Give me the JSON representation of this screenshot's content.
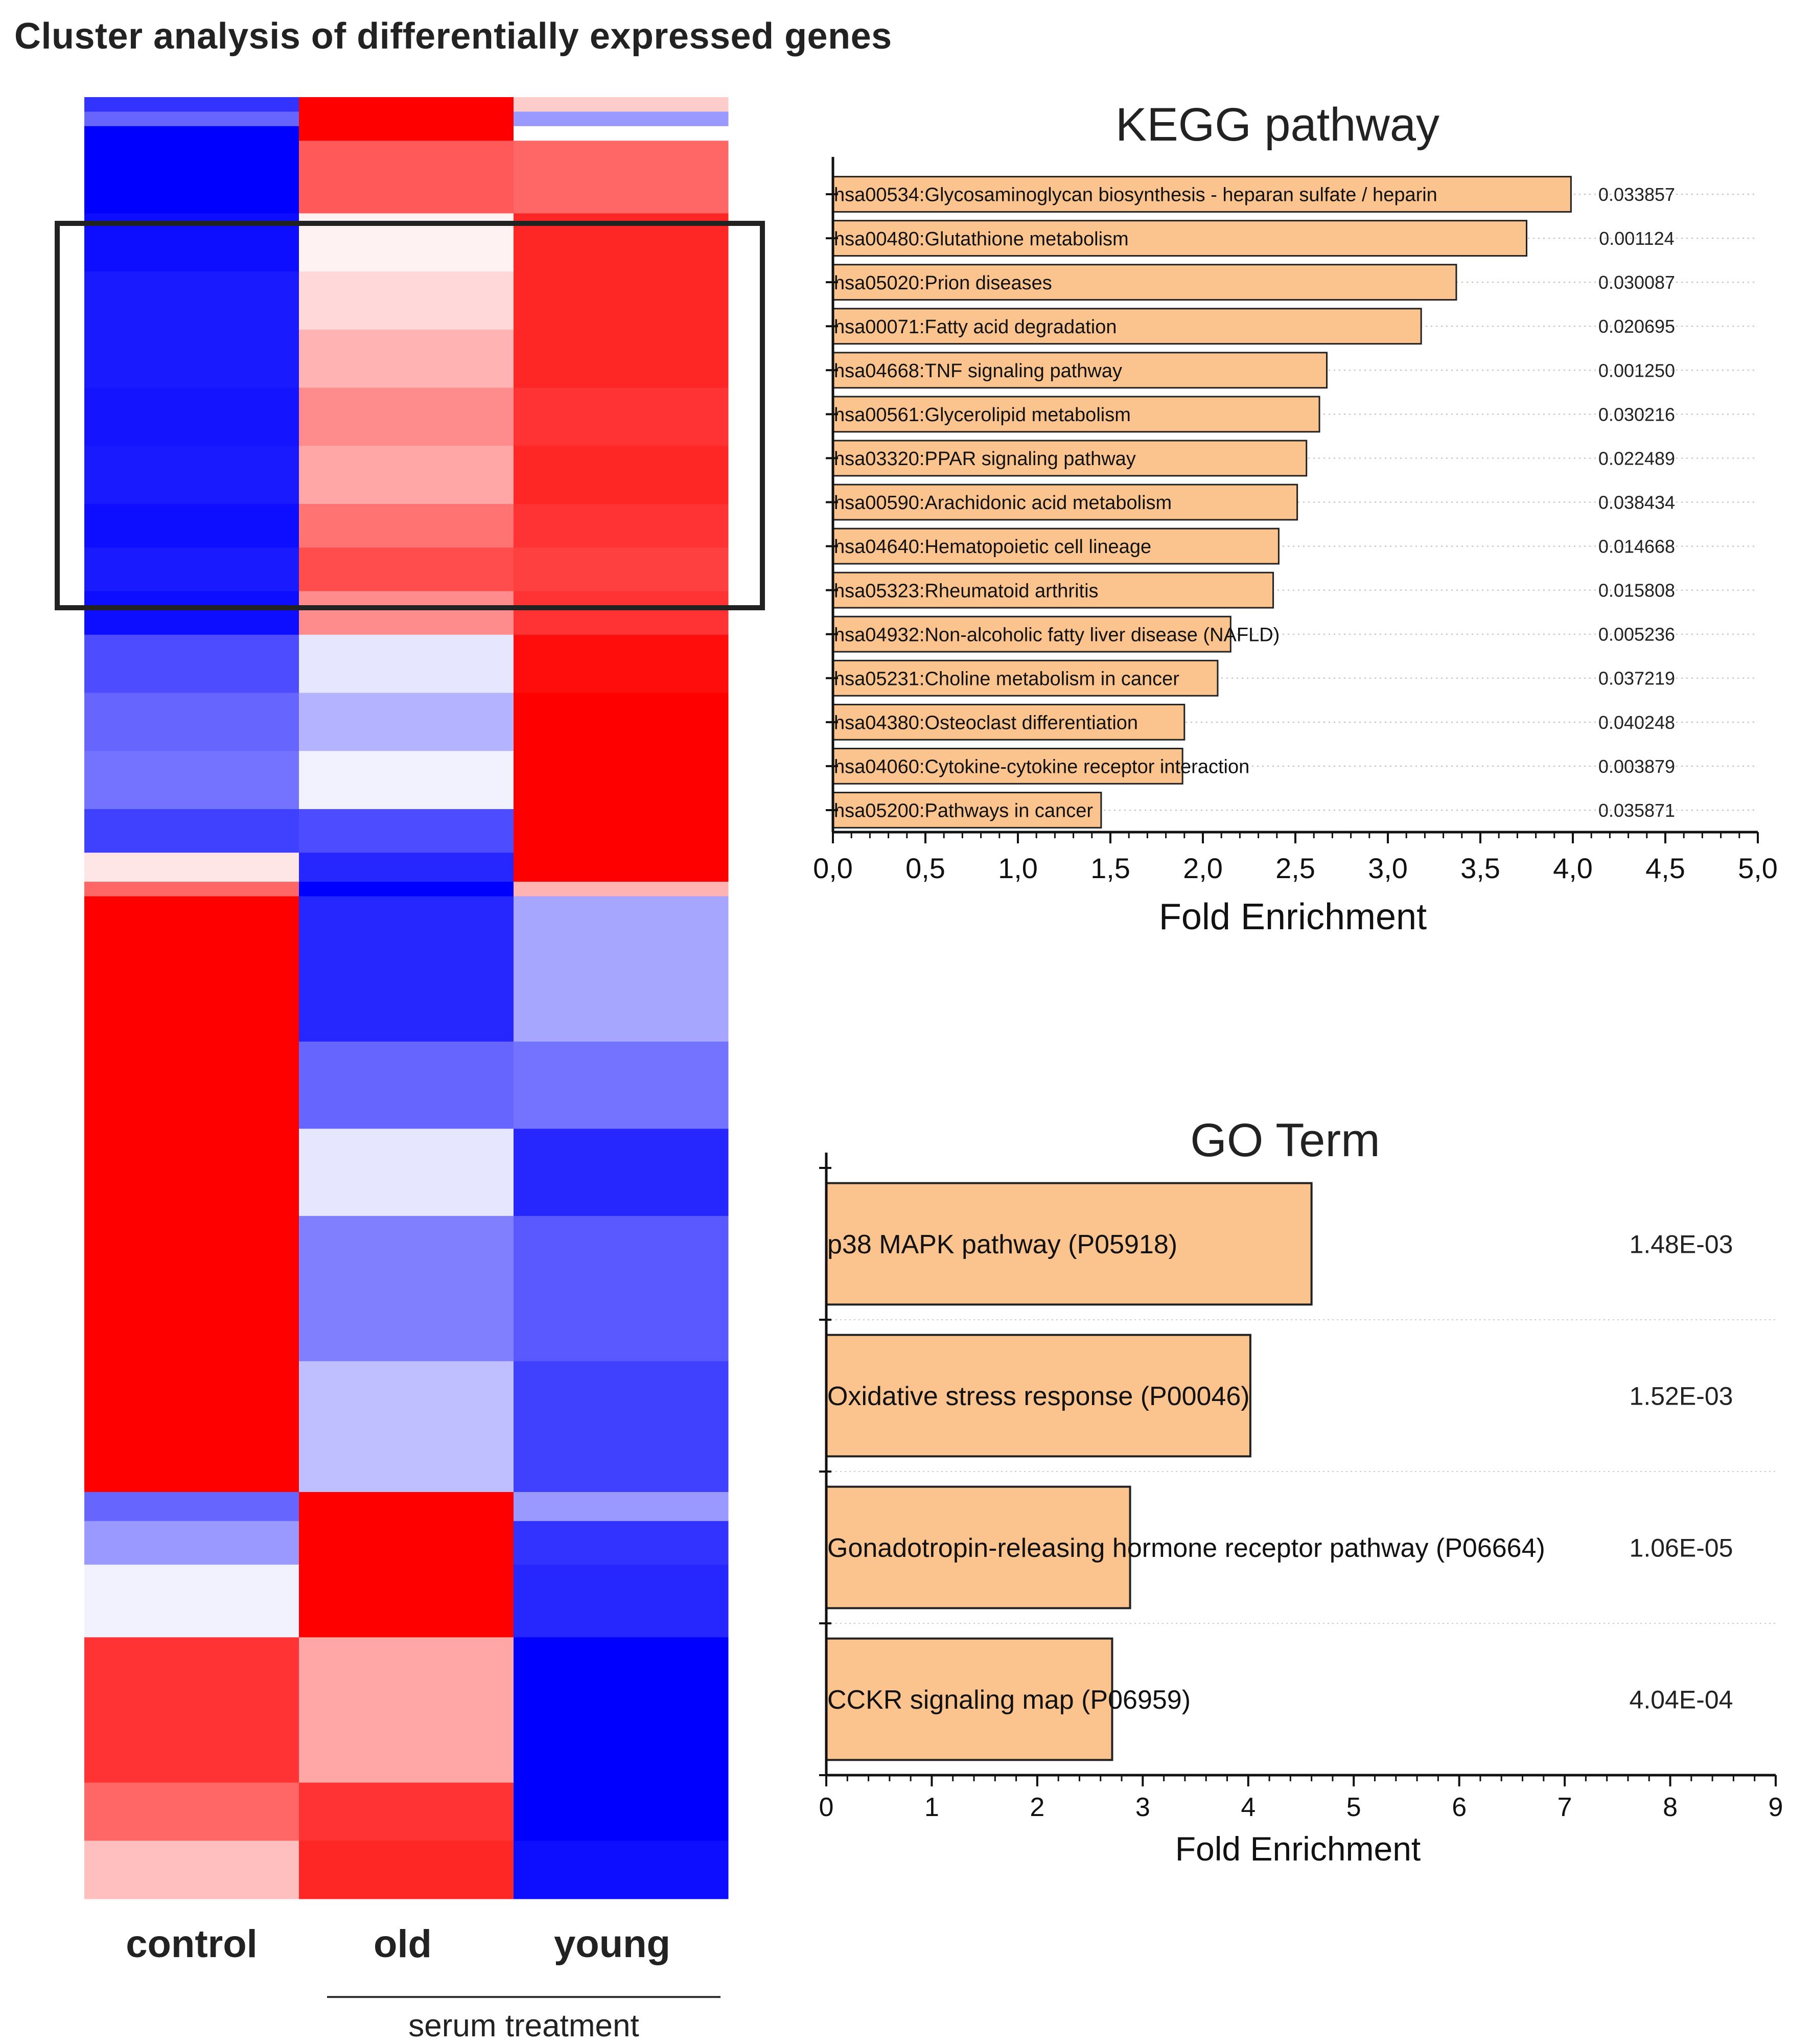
{
  "title": "Cluster analysis of differentially expressed genes",
  "heatmap": {
    "columns": [
      "control",
      "old",
      "young"
    ],
    "group_label": "serum treatment",
    "color_scale": {
      "low": "#0000ff",
      "mid": "#ffffff",
      "high": "#ff0000"
    },
    "values_note_scale": "-1 = blue, 0 = white, 1 = red",
    "blocks": [
      {
        "rows": 1,
        "values": [
          -0.8,
          1.0,
          0.2
        ]
      },
      {
        "rows": 1,
        "values": [
          -0.6,
          1.0,
          -0.4
        ]
      },
      {
        "rows": 1,
        "values": [
          -1.0,
          1.0,
          0.0
        ]
      },
      {
        "rows": 5,
        "values": [
          -1.0,
          0.65,
          0.6
        ]
      },
      {
        "rows": 4,
        "values": [
          -0.95,
          0.05,
          0.85
        ]
      },
      {
        "rows": 4,
        "values": [
          -0.9,
          0.15,
          0.85
        ]
      },
      {
        "rows": 4,
        "values": [
          -0.9,
          0.3,
          0.85
        ]
      },
      {
        "rows": 4,
        "values": [
          -0.92,
          0.45,
          0.8
        ]
      },
      {
        "rows": 4,
        "values": [
          -0.9,
          0.35,
          0.85
        ]
      },
      {
        "rows": 3,
        "values": [
          -0.95,
          0.55,
          0.8
        ]
      },
      {
        "rows": 3,
        "values": [
          -0.9,
          0.7,
          0.75
        ]
      },
      {
        "rows": 3,
        "values": [
          -0.95,
          0.45,
          0.8
        ]
      },
      {
        "rows": 4,
        "values": [
          -0.7,
          -0.1,
          0.95
        ]
      },
      {
        "rows": 4,
        "values": [
          -0.6,
          -0.3,
          1.0
        ]
      },
      {
        "rows": 4,
        "values": [
          -0.55,
          -0.05,
          1.0
        ]
      },
      {
        "rows": 3,
        "values": [
          -0.75,
          -0.7,
          1.0
        ]
      },
      {
        "rows": 2,
        "values": [
          0.1,
          -0.85,
          1.0
        ]
      },
      {
        "rows": 1,
        "values": [
          0.6,
          -1.0,
          0.3
        ]
      },
      {
        "rows": 10,
        "values": [
          1.0,
          -0.85,
          -0.35
        ]
      },
      {
        "rows": 6,
        "values": [
          1.0,
          -0.6,
          -0.55
        ]
      },
      {
        "rows": 6,
        "values": [
          1.0,
          -0.1,
          -0.85
        ]
      },
      {
        "rows": 10,
        "values": [
          1.0,
          -0.5,
          -0.65
        ]
      },
      {
        "rows": 9,
        "values": [
          1.0,
          -0.25,
          -0.75
        ]
      },
      {
        "rows": 2,
        "values": [
          -0.6,
          1.0,
          -0.4
        ]
      },
      {
        "rows": 3,
        "values": [
          -0.4,
          1.0,
          -0.8
        ]
      },
      {
        "rows": 5,
        "values": [
          -0.05,
          1.0,
          -0.85
        ]
      },
      {
        "rows": 10,
        "values": [
          0.8,
          0.35,
          -1.0
        ]
      },
      {
        "rows": 4,
        "values": [
          0.6,
          0.8,
          -1.0
        ]
      },
      {
        "rows": 4,
        "values": [
          0.25,
          0.85,
          -0.95
        ]
      }
    ]
  },
  "chart_data": [
    {
      "type": "bar",
      "orientation": "horizontal",
      "title": "KEGG pathway",
      "xlabel": "Fold Enrichment",
      "xlim": [
        0,
        5
      ],
      "x_ticks": [
        "0,0",
        "0,5",
        "1,0",
        "1,5",
        "2,0",
        "2,5",
        "3,0",
        "3,5",
        "4,0",
        "4,5",
        "5,0"
      ],
      "bar_color": "#fbc48e",
      "categories": [
        "hsa00534:Glycosaminoglycan biosynthesis - heparan sulfate / heparin",
        "hsa00480:Glutathione metabolism",
        "hsa05020:Prion diseases",
        "hsa00071:Fatty acid degradation",
        "hsa04668:TNF signaling pathway",
        "hsa00561:Glycerolipid metabolism",
        "hsa03320:PPAR signaling pathway",
        "hsa00590:Arachidonic acid metabolism",
        "hsa04640:Hematopoietic cell lineage",
        "hsa05323:Rheumatoid arthritis",
        "hsa04932:Non-alcoholic fatty liver disease (NAFLD)",
        "hsa05231:Choline metabolism in cancer",
        "hsa04380:Osteoclast differentiation",
        "hsa04060:Cytokine-cytokine receptor interaction",
        "hsa05200:Pathways in cancer"
      ],
      "values": [
        3.99,
        3.75,
        3.37,
        3.18,
        2.67,
        2.63,
        2.56,
        2.51,
        2.41,
        2.38,
        2.15,
        2.08,
        1.9,
        1.89,
        1.45
      ],
      "annotations": [
        "0.033857",
        "0.001124",
        "0.030087",
        "0.020695",
        "0.001250",
        "0.030216",
        "0.022489",
        "0.038434",
        "0.014668",
        "0.015808",
        "0.005236",
        "0.037219",
        "0.040248",
        "0.003879",
        "0.035871"
      ]
    },
    {
      "type": "bar",
      "orientation": "horizontal",
      "title": "GO Term",
      "xlabel": "Fold Enrichment",
      "xlim": [
        0,
        9
      ],
      "x_ticks": [
        "0",
        "1",
        "2",
        "3",
        "4",
        "5",
        "6",
        "7",
        "8",
        "9"
      ],
      "bar_color": "#fbc48e",
      "categories": [
        "p38 MAPK pathway (P05918)",
        "Oxidative stress response (P00046)",
        "Gonadotropin-releasing hormone receptor pathway (P06664)",
        "CCKR signaling map (P06959)"
      ],
      "values": [
        4.6,
        4.02,
        2.88,
        2.71
      ],
      "annotations": [
        "1.48E-03",
        "1.52E-03",
        "1.06E-05",
        "4.04E-04"
      ]
    }
  ]
}
